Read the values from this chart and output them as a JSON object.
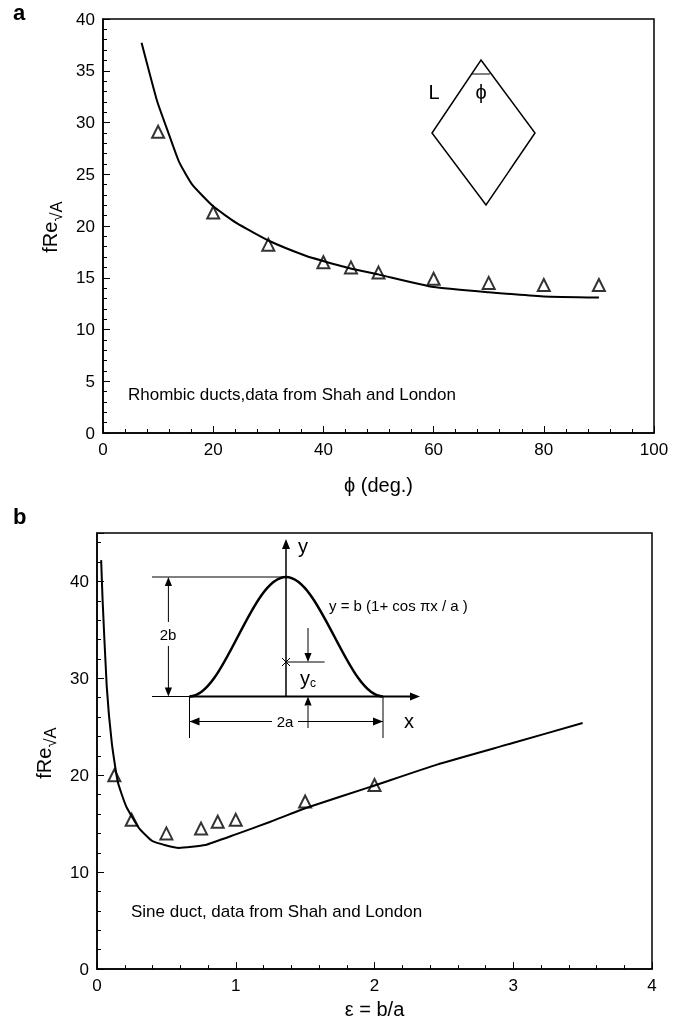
{
  "chart_data": [
    {
      "type": "line",
      "title": "a",
      "xlabel": "ϕ (deg.)",
      "ylabel": "fRe$_{√A}$",
      "xlim": [
        0,
        100
      ],
      "ylim": [
        0,
        40
      ],
      "xticks": [
        0,
        20,
        40,
        60,
        80,
        100
      ],
      "yticks": [
        0,
        5,
        10,
        15,
        20,
        25,
        30,
        35,
        40
      ],
      "grid": false,
      "annotations": [
        "Rhombic ducts,data from Shah and London",
        "L",
        "ϕ"
      ],
      "series": [
        {
          "color": "#000000",
          "marker": "none",
          "x": [
            7,
            9.8,
            11.8,
            13.8,
            16.2,
            20,
            24.2,
            30,
            36.9,
            40.1,
            44.9,
            50.1,
            60,
            70,
            80,
            90
          ],
          "values": [
            37.7,
            32.1,
            29.1,
            26.2,
            24.0,
            21.9,
            20.3,
            18.6,
            17.1,
            16.6,
            15.9,
            15.3,
            14.1,
            13.6,
            13.2,
            13.1
          ]
        },
        {
          "type": "scatter",
          "color": "#000000",
          "marker": "triangle",
          "x": [
            10,
            20,
            30,
            40,
            45,
            50,
            60,
            70,
            80,
            90
          ],
          "values": [
            29.1,
            21.3,
            18.2,
            16.5,
            16.0,
            15.5,
            14.9,
            14.5,
            14.3,
            14.3
          ]
        }
      ]
    },
    {
      "type": "line",
      "title": "b",
      "xlabel": "ε = b/a",
      "ylabel": "fRe$_{√A}$",
      "xlim": [
        0,
        4
      ],
      "ylim": [
        0,
        45
      ],
      "xticks": [
        0,
        1,
        2,
        3,
        4
      ],
      "yticks": [
        0,
        10,
        20,
        30,
        40
      ],
      "grid": false,
      "annotations": [
        "Sine duct, data from Shah and London",
        "y",
        "y = b (1+ cos πx / a )",
        "2b",
        "y$_{c}$",
        "2a",
        "x"
      ],
      "series": [
        {
          "color": "#000000",
          "marker": "none",
          "x": [
            0.03,
            0.04,
            0.07,
            0.107,
            0.15,
            0.21,
            0.3,
            0.4,
            0.59,
            0.78,
            1.0,
            1.25,
            1.5,
            1.97,
            2.45,
            2.99,
            3.5
          ],
          "values": [
            42.2,
            38.2,
            29.2,
            23.3,
            19.3,
            16.8,
            14.6,
            13.2,
            12.5,
            12.8,
            13.9,
            15.2,
            16.6,
            18.8,
            21.1,
            23.3,
            25.4
          ]
        },
        {
          "type": "scatter",
          "color": "#000000",
          "marker": "triangle",
          "x": [
            0.125,
            0.25,
            0.5,
            0.75,
            0.87,
            1.0,
            1.5,
            2.0
          ],
          "values": [
            20.0,
            15.4,
            14.0,
            14.5,
            15.2,
            15.4,
            17.3,
            19.0
          ]
        }
      ]
    }
  ]
}
